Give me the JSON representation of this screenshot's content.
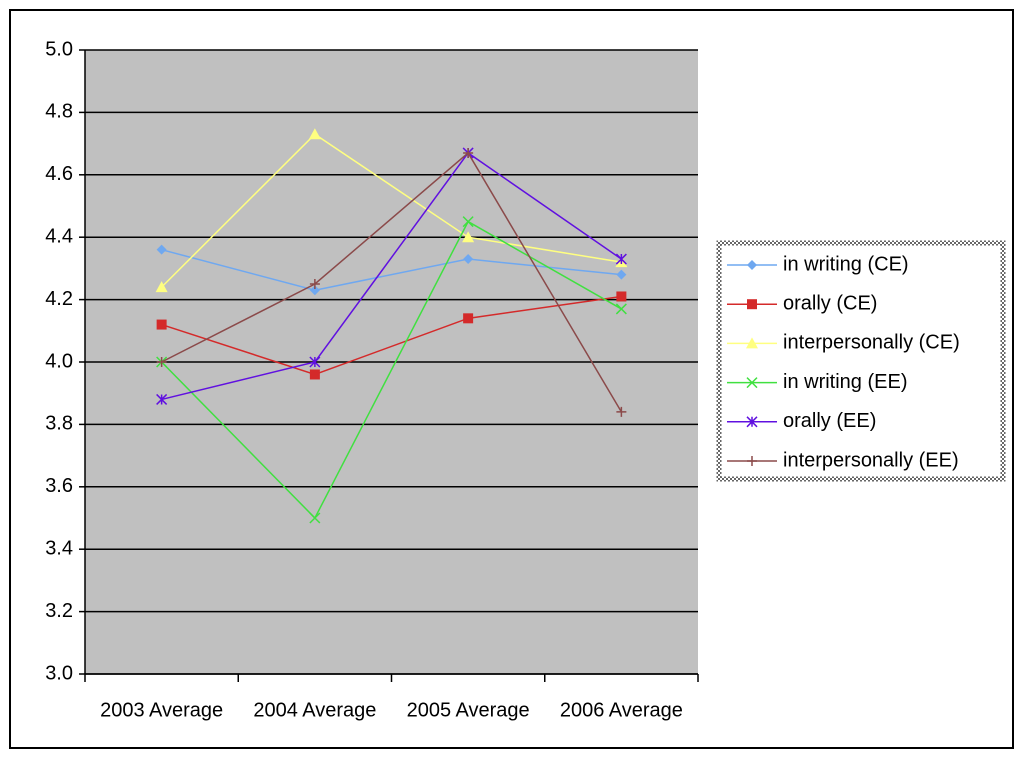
{
  "chart_data": {
    "type": "line",
    "categories": [
      "2003 Average",
      "2004 Average",
      "2005 Average",
      "2006 Average"
    ],
    "ylim": [
      3.0,
      5.0
    ],
    "yticks": [
      {
        "value": 3,
        "label": "3.0"
      },
      3.2,
      3.4,
      3.6,
      3.8,
      {
        "value": 4,
        "label": "4.0"
      },
      4.2,
      4.4,
      4.6,
      4.8,
      {
        "value": 5,
        "label": "5.0"
      }
    ],
    "grid": true,
    "legend": "right",
    "series": [
      {
        "name": "in writing (CE)",
        "color": "#6fa8f0",
        "marker": "diamond",
        "values": [
          4.36,
          4.23,
          4.33,
          4.28
        ]
      },
      {
        "name": "orally (CE)",
        "color": "#d42a2a",
        "marker": "square",
        "values": [
          4.12,
          3.96,
          4.14,
          4.21
        ]
      },
      {
        "name": "interpersonally (CE)",
        "color": "#ffff80",
        "marker": "triangle",
        "values": [
          4.24,
          4.73,
          4.4,
          4.32
        ]
      },
      {
        "name": "in writing (EE)",
        "color": "#40e040",
        "marker": "x",
        "values": [
          4.0,
          3.5,
          4.45,
          4.17
        ]
      },
      {
        "name": "orally (EE)",
        "color": "#6010e0",
        "marker": "star",
        "values": [
          3.88,
          4.0,
          4.67,
          4.33
        ]
      },
      {
        "name": "interpersonally (EE)",
        "color": "#8b4a4a",
        "marker": "plus",
        "values": [
          4.0,
          4.25,
          4.67,
          3.84
        ]
      }
    ]
  }
}
